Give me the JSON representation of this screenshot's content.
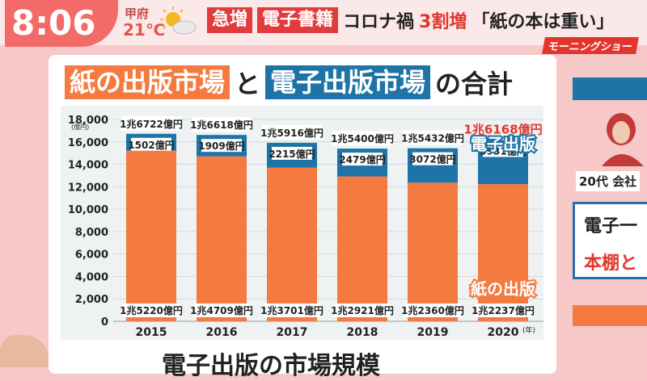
{
  "header": {
    "clock": "8:06",
    "weather_city": "甲府",
    "weather_temp": "21℃",
    "tag1": "急増",
    "tag2": "電子書籍",
    "text1": "コロナ禍",
    "accent": "3割増",
    "quote": "「紙の本は重い」",
    "show_logo": "モーニングショー"
  },
  "chart_title": {
    "paper": "紙の出版市場",
    "to": "と",
    "electronic": "電子出版市場",
    "sum": "の合計"
  },
  "bottom_title": "電子出版の市場規模",
  "side": {
    "label": "20代 会社",
    "text1": "電子一",
    "text2": "本棚と"
  },
  "colors": {
    "paper": "#f47a40",
    "electronic": "#1e74a6",
    "highlight": "#e2362d"
  },
  "chart_data": {
    "type": "bar",
    "stacked": true,
    "categories": [
      "2015",
      "2016",
      "2017",
      "2018",
      "2019",
      "2020"
    ],
    "x_unit": "(年)",
    "y_unit": "(億円)",
    "ylim": [
      0,
      18000
    ],
    "yticks": [
      "0",
      "2,000",
      "4,000",
      "6,000",
      "8,000",
      "10,000",
      "12,000",
      "14,000",
      "16,000",
      "18,000"
    ],
    "series": [
      {
        "name": "紙の出版",
        "values": [
          15220,
          14709,
          13701,
          12921,
          12360,
          12237
        ],
        "labels": [
          "1兆5220億円",
          "1兆4709億円",
          "1兆3701億円",
          "1兆2921億円",
          "1兆2360億円",
          "1兆2237億円"
        ]
      },
      {
        "name": "電子出版",
        "values": [
          1502,
          1909,
          2215,
          2479,
          3072,
          3931
        ],
        "labels": [
          "1502億円",
          "1909億円",
          "2215億円",
          "2479億円",
          "3072億円",
          "3931億円"
        ]
      }
    ],
    "totals": [
      16722,
      16618,
      15916,
      15400,
      15432,
      16168
    ],
    "total_labels": [
      "1兆6722億円",
      "1兆6618億円",
      "1兆5916億円",
      "1兆5400億円",
      "1兆5432億円",
      "1兆6168億円"
    ]
  }
}
